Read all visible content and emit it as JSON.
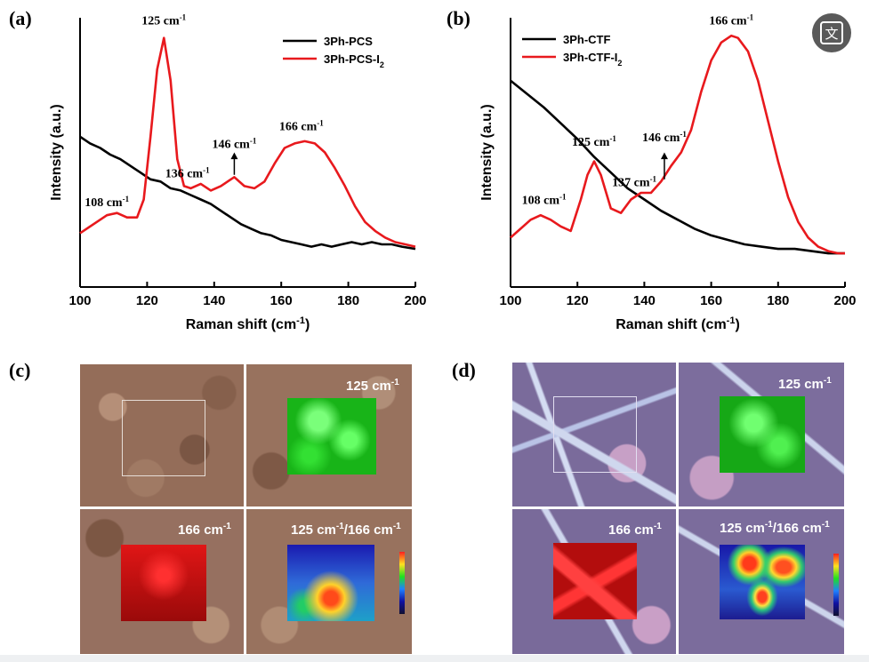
{
  "panels": {
    "a": "(a)",
    "b": "(b)",
    "c": "(c)",
    "d": "(d)"
  },
  "chart_data": [
    {
      "id": "a",
      "type": "line",
      "xlabel": "Raman shift (cm-1)",
      "xlabel_sup": "-1",
      "xlabel_main": "Raman shift (cm",
      "xlabel_end": ")",
      "ylabel": "Intensity (a.u.)",
      "xlim": [
        100,
        200
      ],
      "ylim": [
        0,
        1
      ],
      "xticks": [
        "100",
        "120",
        "140",
        "160",
        "180",
        "200"
      ],
      "legend_position": "top-right",
      "series": [
        {
          "name": "3Ph-PCS",
          "color": "#000000",
          "x": [
            100,
            103,
            106,
            109,
            112,
            115,
            118,
            121,
            124,
            127,
            130,
            133,
            136,
            139,
            142,
            145,
            148,
            151,
            154,
            157,
            160,
            163,
            166,
            169,
            172,
            175,
            178,
            181,
            184,
            187,
            190,
            193,
            196,
            200
          ],
          "y": [
            0.55,
            0.52,
            0.5,
            0.47,
            0.45,
            0.42,
            0.39,
            0.36,
            0.35,
            0.32,
            0.31,
            0.29,
            0.27,
            0.25,
            0.22,
            0.19,
            0.16,
            0.14,
            0.12,
            0.11,
            0.09,
            0.08,
            0.07,
            0.06,
            0.07,
            0.06,
            0.07,
            0.08,
            0.07,
            0.08,
            0.07,
            0.07,
            0.06,
            0.05
          ]
        },
        {
          "name": "3Ph-PCS-I2",
          "name_main": "3Ph-PCS-I",
          "name_sub": "2",
          "color": "#e8191d",
          "x": [
            100,
            104,
            108,
            111,
            114,
            117,
            119,
            121,
            123,
            125,
            127,
            129,
            131,
            133,
            136,
            139,
            142,
            146,
            149,
            152,
            155,
            158,
            161,
            164,
            167,
            170,
            173,
            176,
            179,
            182,
            185,
            188,
            191,
            194,
            197,
            200
          ],
          "y": [
            0.12,
            0.16,
            0.2,
            0.21,
            0.19,
            0.19,
            0.27,
            0.55,
            0.85,
            0.99,
            0.8,
            0.45,
            0.33,
            0.32,
            0.34,
            0.31,
            0.33,
            0.37,
            0.33,
            0.32,
            0.35,
            0.43,
            0.5,
            0.52,
            0.53,
            0.52,
            0.48,
            0.41,
            0.33,
            0.24,
            0.17,
            0.13,
            0.1,
            0.08,
            0.07,
            0.06
          ]
        }
      ],
      "annotations": [
        {
          "text": "125 cm",
          "sup": "-1",
          "x": 125,
          "y": 1.05
        },
        {
          "text": "108 cm",
          "sup": "-1",
          "x": 108,
          "y": 0.24
        },
        {
          "text": "136 cm",
          "sup": "-1",
          "x": 132,
          "y": 0.37
        },
        {
          "text": "146 cm",
          "sup": "-1",
          "x": 146,
          "y": 0.5
        },
        {
          "text": "166 cm",
          "sup": "-1",
          "x": 166,
          "y": 0.58
        }
      ]
    },
    {
      "id": "b",
      "type": "line",
      "xlabel_main": "Raman shift (cm",
      "xlabel_sup": "-1",
      "xlabel_end": ")",
      "ylabel": "Intensity (a.u.)",
      "xlim": [
        100,
        200
      ],
      "ylim": [
        0,
        1
      ],
      "xticks": [
        "100",
        "120",
        "140",
        "160",
        "180",
        "200"
      ],
      "legend_position": "top-left",
      "series": [
        {
          "name": "3Ph-CTF",
          "color": "#000000",
          "x": [
            100,
            105,
            110,
            115,
            120,
            125,
            130,
            135,
            140,
            145,
            150,
            155,
            160,
            165,
            170,
            175,
            180,
            185,
            190,
            195,
            200
          ],
          "y": [
            0.8,
            0.74,
            0.68,
            0.61,
            0.54,
            0.46,
            0.39,
            0.32,
            0.27,
            0.22,
            0.18,
            0.14,
            0.11,
            0.09,
            0.07,
            0.06,
            0.05,
            0.05,
            0.04,
            0.03,
            0.03
          ]
        },
        {
          "name": "3Ph-CTF-I2",
          "name_main": "3Ph-CTF-I",
          "name_sub": "2",
          "color": "#e8191d",
          "x": [
            100,
            103,
            106,
            109,
            112,
            115,
            118,
            121,
            123,
            125,
            127,
            130,
            133,
            136,
            139,
            142,
            145,
            148,
            151,
            154,
            157,
            160,
            163,
            166,
            168,
            171,
            174,
            177,
            180,
            183,
            186,
            189,
            192,
            195,
            198,
            200
          ],
          "y": [
            0.1,
            0.14,
            0.18,
            0.2,
            0.18,
            0.15,
            0.13,
            0.27,
            0.38,
            0.44,
            0.38,
            0.23,
            0.21,
            0.27,
            0.3,
            0.3,
            0.35,
            0.42,
            0.48,
            0.58,
            0.75,
            0.89,
            0.97,
            1.0,
            0.99,
            0.93,
            0.8,
            0.62,
            0.44,
            0.28,
            0.17,
            0.1,
            0.06,
            0.04,
            0.03,
            0.03
          ]
        }
      ],
      "annotations": [
        {
          "text": "166 cm",
          "sup": "-1",
          "x": 166,
          "y": 1.05
        },
        {
          "text": "108 cm",
          "sup": "-1",
          "x": 110,
          "y": 0.25
        },
        {
          "text": "125 cm",
          "sup": "-1",
          "x": 125,
          "y": 0.51
        },
        {
          "text": "137 cm",
          "sup": "-1",
          "x": 137,
          "y": 0.33
        },
        {
          "text": "146 cm",
          "sup": "-1",
          "x": 146,
          "y": 0.53
        }
      ]
    }
  ],
  "map_labels": {
    "c_tr": "125 cm",
    "c_bl": "166 cm",
    "c_br_a": "125 cm",
    "c_br_b": "/166 cm",
    "d_tr": "125 cm",
    "d_bl": "166 cm",
    "d_br_a": "125 cm",
    "d_br_b": "/166 cm",
    "sup": "-1"
  },
  "colors": {
    "brown_bg": "#9a7460",
    "purple_bg": "#7d6a9c",
    "green_map": "#1ed61e",
    "red_map": "#e01010"
  },
  "translate_icon": "translate-icon",
  "translate_label": "文"
}
